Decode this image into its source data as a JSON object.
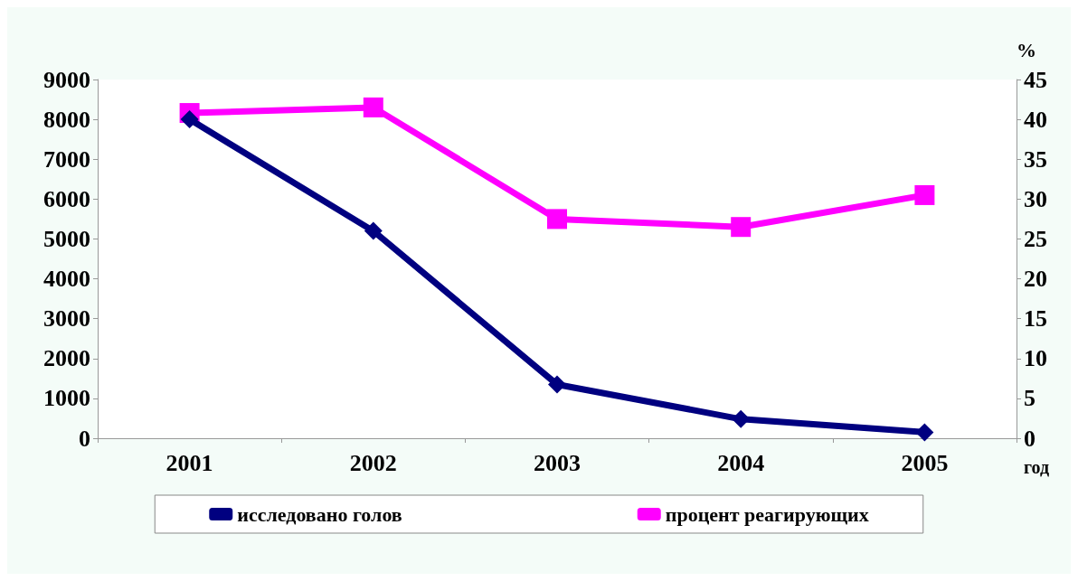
{
  "chart_data": {
    "type": "line",
    "xlabel": "год",
    "y2label": "%",
    "categories": [
      "2001",
      "2002",
      "2003",
      "2004",
      "2005"
    ],
    "series": [
      {
        "name": "исследовано голов",
        "color": "#000080",
        "marker": "diamond",
        "values": [
          8000,
          5200,
          1350,
          480,
          150
        ]
      },
      {
        "name": "процент реагирующих",
        "color": "#ff00ff",
        "marker": "square",
        "axis": "y2",
        "values": [
          40.8,
          41.5,
          27.5,
          26.5,
          30.5
        ]
      }
    ],
    "ylim": [
      0,
      9000
    ],
    "yticks": [
      0,
      1000,
      2000,
      3000,
      4000,
      5000,
      6000,
      7000,
      8000,
      9000
    ],
    "y2lim": [
      0,
      45
    ],
    "y2ticks": [
      0,
      5,
      10,
      15,
      20,
      25,
      30,
      35,
      40,
      45
    ],
    "grid": false,
    "legend": "bottom",
    "line_style": "solid"
  }
}
